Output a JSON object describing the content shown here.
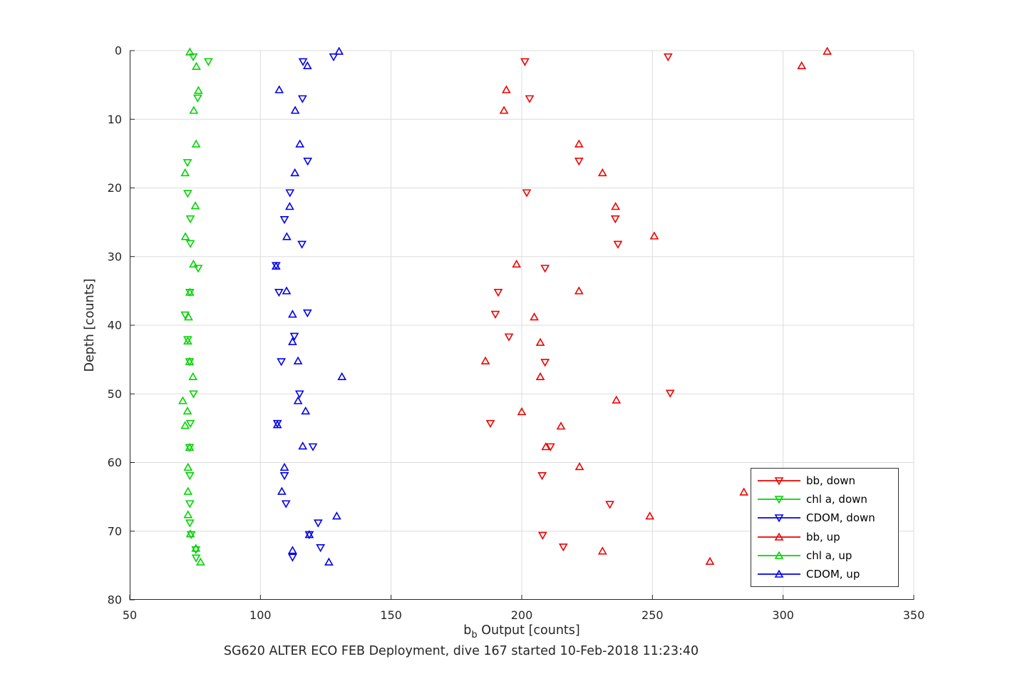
{
  "figure": {
    "background": "#ffffff",
    "axis_color": "#262626",
    "grid_color": "#dcdcdc"
  },
  "labels": {
    "ylabel": "Depth [counts]",
    "xlabel_base": "b",
    "xlabel_sub": "b",
    "xlabel_rest": " Output [counts]",
    "subtitle": "SG620 ALTER ECO FEB Deployment, dive 167 started 10-Feb-2018 11:23:40"
  },
  "chart_data": {
    "type": "scatter",
    "title": "SG620 ALTER ECO FEB Deployment, dive 167 started 10-Feb-2018 11:23:40",
    "xlabel": "b_b Output [counts]",
    "ylabel": "Depth [counts]",
    "xlim": [
      50,
      350
    ],
    "ylim": [
      0,
      80
    ],
    "y_axis_reversed": true,
    "grid": true,
    "xticks": [
      50,
      100,
      150,
      200,
      250,
      300,
      350
    ],
    "yticks": [
      0,
      10,
      20,
      30,
      40,
      50,
      60,
      70,
      80
    ],
    "legend_location": "inside lower right",
    "marker_style": "hollow-triangle",
    "series": [
      {
        "name": "bb, down",
        "marker": "triangle-down",
        "color": "#ee0000",
        "points": [
          [
            256.0,
            0.9
          ],
          [
            201.2,
            1.6
          ],
          [
            203.0,
            7.0
          ],
          [
            221.9,
            16.1
          ],
          [
            201.9,
            20.7
          ],
          [
            235.8,
            24.5
          ],
          [
            236.8,
            28.2
          ],
          [
            208.9,
            31.7
          ],
          [
            191.0,
            35.2
          ],
          [
            189.9,
            38.4
          ],
          [
            195.1,
            41.7
          ],
          [
            208.9,
            45.4
          ],
          [
            256.8,
            49.9
          ],
          [
            188.0,
            54.3
          ],
          [
            211.0,
            57.7
          ],
          [
            207.8,
            61.9
          ],
          [
            233.7,
            66.1
          ],
          [
            208.0,
            70.6
          ],
          [
            215.9,
            72.3
          ]
        ]
      },
      {
        "name": "chl a, down",
        "marker": "triangle-down",
        "color": "#00d400",
        "points": [
          [
            74.3,
            0.9
          ],
          [
            80.1,
            1.6
          ],
          [
            76.0,
            6.9
          ],
          [
            72.1,
            16.3
          ],
          [
            72.2,
            20.8
          ],
          [
            73.2,
            24.5
          ],
          [
            73.2,
            28.1
          ],
          [
            76.2,
            31.7
          ],
          [
            73.0,
            35.2
          ],
          [
            71.2,
            38.5
          ],
          [
            72.2,
            42.1
          ],
          [
            72.9,
            45.3
          ],
          [
            74.4,
            50.0
          ],
          [
            73.2,
            54.3
          ],
          [
            72.9,
            57.8
          ],
          [
            73.0,
            61.9
          ],
          [
            73.0,
            66.0
          ],
          [
            73.0,
            68.8
          ],
          [
            73.5,
            70.5
          ],
          [
            75.3,
            72.7
          ],
          [
            75.4,
            73.9
          ]
        ]
      },
      {
        "name": "CDOM, down",
        "marker": "triangle-down",
        "color": "#0000ee",
        "points": [
          [
            128.0,
            0.9
          ],
          [
            116.3,
            1.6
          ],
          [
            116.1,
            7.0
          ],
          [
            118.1,
            16.1
          ],
          [
            111.3,
            20.7
          ],
          [
            109.2,
            24.6
          ],
          [
            115.9,
            28.2
          ],
          [
            106.0,
            31.3
          ],
          [
            107.1,
            35.2
          ],
          [
            118.0,
            38.2
          ],
          [
            113.0,
            41.6
          ],
          [
            108.0,
            45.3
          ],
          [
            115.0,
            50.0
          ],
          [
            106.5,
            54.3
          ],
          [
            120.1,
            57.7
          ],
          [
            109.2,
            61.9
          ],
          [
            109.8,
            66.0
          ],
          [
            122.1,
            68.8
          ],
          [
            118.7,
            70.5
          ],
          [
            123.0,
            72.4
          ],
          [
            112.3,
            73.8
          ]
        ]
      },
      {
        "name": "bb, up",
        "marker": "triangle-up",
        "color": "#ee0000",
        "points": [
          [
            316.9,
            0.1
          ],
          [
            307.1,
            2.2
          ],
          [
            194.1,
            5.7
          ],
          [
            193.2,
            8.7
          ],
          [
            221.9,
            13.6
          ],
          [
            230.9,
            17.8
          ],
          [
            235.9,
            22.7
          ],
          [
            250.7,
            27.0
          ],
          [
            198.0,
            31.1
          ],
          [
            221.9,
            35.0
          ],
          [
            204.8,
            38.8
          ],
          [
            207.1,
            42.5
          ],
          [
            186.1,
            45.2
          ],
          [
            207.1,
            47.5
          ],
          [
            236.2,
            50.9
          ],
          [
            200.0,
            52.6
          ],
          [
            215.0,
            54.7
          ],
          [
            209.2,
            57.7
          ],
          [
            222.1,
            60.6
          ],
          [
            285.0,
            64.3
          ],
          [
            249.0,
            67.8
          ],
          [
            230.9,
            72.9
          ],
          [
            272.0,
            74.4
          ]
        ]
      },
      {
        "name": "chl a, up",
        "marker": "triangle-up",
        "color": "#00d400",
        "points": [
          [
            73.0,
            0.2
          ],
          [
            75.5,
            2.3
          ],
          [
            76.3,
            5.8
          ],
          [
            74.5,
            8.7
          ],
          [
            75.4,
            13.6
          ],
          [
            71.2,
            17.8
          ],
          [
            75.1,
            22.6
          ],
          [
            71.3,
            27.1
          ],
          [
            74.4,
            31.1
          ],
          [
            73.0,
            35.2
          ],
          [
            72.5,
            38.8
          ],
          [
            72.2,
            42.3
          ],
          [
            72.9,
            45.3
          ],
          [
            74.2,
            47.5
          ],
          [
            70.3,
            51.0
          ],
          [
            72.1,
            52.5
          ],
          [
            71.2,
            54.6
          ],
          [
            72.9,
            57.8
          ],
          [
            72.3,
            60.7
          ],
          [
            72.3,
            64.2
          ],
          [
            72.3,
            67.6
          ],
          [
            73.2,
            70.4
          ],
          [
            75.3,
            72.5
          ],
          [
            77.1,
            74.5
          ]
        ]
      },
      {
        "name": "CDOM, up",
        "marker": "triangle-up",
        "color": "#0000ee",
        "points": [
          [
            130.1,
            0.1
          ],
          [
            118.0,
            2.2
          ],
          [
            107.2,
            5.7
          ],
          [
            113.3,
            8.7
          ],
          [
            115.1,
            13.6
          ],
          [
            113.2,
            17.8
          ],
          [
            111.2,
            22.7
          ],
          [
            110.1,
            27.1
          ],
          [
            106.0,
            31.4
          ],
          [
            110.0,
            35.0
          ],
          [
            112.3,
            38.4
          ],
          [
            112.3,
            42.4
          ],
          [
            114.4,
            45.2
          ],
          [
            131.2,
            47.5
          ],
          [
            114.4,
            51.0
          ],
          [
            117.3,
            52.5
          ],
          [
            106.5,
            54.5
          ],
          [
            116.2,
            57.6
          ],
          [
            109.2,
            60.7
          ],
          [
            108.2,
            64.2
          ],
          [
            129.2,
            67.8
          ],
          [
            118.7,
            70.5
          ],
          [
            112.3,
            72.8
          ],
          [
            126.2,
            74.5
          ]
        ]
      }
    ]
  }
}
